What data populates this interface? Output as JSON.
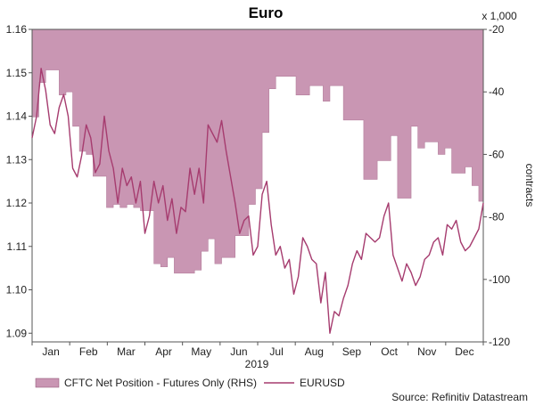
{
  "chart_data": {
    "type": "area+line",
    "title": "Euro",
    "x_year_label": "2019",
    "x_categories": [
      "Jan",
      "Feb",
      "Mar",
      "Apr",
      "May",
      "Jun",
      "Jul",
      "Aug",
      "Sep",
      "Oct",
      "Nov",
      "Dec"
    ],
    "left_axis": {
      "ylim": [
        1.088,
        1.16
      ],
      "ticks": [
        "1.09",
        "1.10",
        "1.11",
        "1.12",
        "1.13",
        "1.14",
        "1.15",
        "1.16"
      ],
      "tick_values": [
        1.09,
        1.1,
        1.11,
        1.12,
        1.13,
        1.14,
        1.15,
        1.16
      ]
    },
    "right_axis": {
      "ylim": [
        -120,
        -20
      ],
      "ticks": [
        "-20",
        "-40",
        "-60",
        "-80",
        "-100",
        "-120"
      ],
      "tick_values": [
        -20,
        -40,
        -60,
        -80,
        -100,
        -120
      ],
      "multiplier_label": "x 1,000",
      "label": "contracts"
    },
    "series": [
      {
        "name": "CFTC Net Position - Futures Only (RHS)",
        "kind": "area-step",
        "axis": "right",
        "color": "#c996b3",
        "x": [
          0,
          0.015,
          0.03,
          0.045,
          0.06,
          0.075,
          0.09,
          0.105,
          0.12,
          0.135,
          0.15,
          0.165,
          0.18,
          0.195,
          0.21,
          0.225,
          0.24,
          0.255,
          0.27,
          0.285,
          0.3,
          0.315,
          0.33,
          0.345,
          0.36,
          0.375,
          0.39,
          0.405,
          0.42,
          0.435,
          0.45,
          0.465,
          0.48,
          0.495,
          0.51,
          0.525,
          0.54,
          0.555,
          0.57,
          0.585,
          0.6,
          0.615,
          0.63,
          0.645,
          0.66,
          0.675,
          0.69,
          0.705,
          0.72,
          0.735,
          0.75,
          0.765,
          0.78,
          0.795,
          0.81,
          0.825,
          0.84,
          0.855,
          0.87,
          0.885,
          0.9,
          0.915,
          0.93,
          0.945,
          0.96,
          0.975,
          0.99,
          1.0
        ],
        "values": [
          -48,
          -37,
          -33,
          -33,
          -41,
          -40,
          -51,
          -59,
          -60,
          -67,
          -67,
          -77,
          -76,
          -77,
          -76,
          -77,
          -78,
          -78,
          -95,
          -96,
          -93,
          -98,
          -98,
          -98,
          -97,
          -91,
          -87,
          -95,
          -93,
          -93,
          -86,
          -86,
          -76,
          -71,
          -53,
          -39,
          -35,
          -35,
          -35,
          -41,
          -41,
          -38,
          -38,
          -43,
          -38,
          -38,
          -49,
          -49,
          -49,
          -68,
          -68,
          -62,
          -62,
          -54,
          -74,
          -74,
          -51,
          -58,
          -56,
          -56,
          -60,
          -58,
          -66,
          -66,
          -64,
          -70,
          -75,
          -75
        ]
      },
      {
        "name": "EURUSD",
        "kind": "line",
        "axis": "left",
        "color": "#a63c6f",
        "x": [
          0,
          0.01,
          0.02,
          0.03,
          0.04,
          0.05,
          0.06,
          0.07,
          0.08,
          0.09,
          0.1,
          0.11,
          0.12,
          0.13,
          0.14,
          0.15,
          0.16,
          0.17,
          0.18,
          0.19,
          0.2,
          0.21,
          0.22,
          0.23,
          0.24,
          0.25,
          0.26,
          0.27,
          0.28,
          0.29,
          0.3,
          0.31,
          0.32,
          0.33,
          0.34,
          0.35,
          0.36,
          0.37,
          0.38,
          0.39,
          0.4,
          0.41,
          0.42,
          0.43,
          0.44,
          0.45,
          0.46,
          0.47,
          0.48,
          0.49,
          0.5,
          0.51,
          0.52,
          0.53,
          0.54,
          0.55,
          0.56,
          0.57,
          0.58,
          0.59,
          0.6,
          0.61,
          0.62,
          0.63,
          0.64,
          0.65,
          0.66,
          0.67,
          0.68,
          0.69,
          0.7,
          0.71,
          0.72,
          0.73,
          0.74,
          0.75,
          0.76,
          0.77,
          0.78,
          0.79,
          0.8,
          0.81,
          0.82,
          0.83,
          0.84,
          0.85,
          0.86,
          0.87,
          0.88,
          0.89,
          0.9,
          0.91,
          0.92,
          0.93,
          0.94,
          0.95,
          0.96,
          0.97,
          0.98,
          0.99,
          1.0
        ],
        "values": [
          1.135,
          1.14,
          1.151,
          1.146,
          1.138,
          1.136,
          1.142,
          1.145,
          1.14,
          1.128,
          1.126,
          1.131,
          1.138,
          1.135,
          1.127,
          1.129,
          1.14,
          1.132,
          1.128,
          1.12,
          1.128,
          1.124,
          1.126,
          1.12,
          1.125,
          1.113,
          1.117,
          1.125,
          1.12,
          1.124,
          1.116,
          1.121,
          1.113,
          1.119,
          1.118,
          1.128,
          1.122,
          1.128,
          1.12,
          1.138,
          1.136,
          1.134,
          1.139,
          1.132,
          1.126,
          1.12,
          1.113,
          1.116,
          1.117,
          1.108,
          1.11,
          1.122,
          1.125,
          1.115,
          1.108,
          1.11,
          1.105,
          1.107,
          1.099,
          1.103,
          1.112,
          1.11,
          1.107,
          1.106,
          1.097,
          1.104,
          1.09,
          1.095,
          1.094,
          1.098,
          1.101,
          1.106,
          1.109,
          1.107,
          1.113,
          1.112,
          1.111,
          1.112,
          1.117,
          1.12,
          1.108,
          1.105,
          1.102,
          1.106,
          1.104,
          1.101,
          1.103,
          1.107,
          1.108,
          1.111,
          1.112,
          1.108,
          1.115,
          1.114,
          1.116,
          1.111,
          1.109,
          1.11,
          1.112,
          1.114,
          1.12
        ]
      }
    ],
    "legend": [
      {
        "label": "CFTC Net Position - Futures Only (RHS)",
        "kind": "area"
      },
      {
        "label": "EURUSD",
        "kind": "line"
      }
    ],
    "source": "Source: Refinitiv Datastream"
  }
}
